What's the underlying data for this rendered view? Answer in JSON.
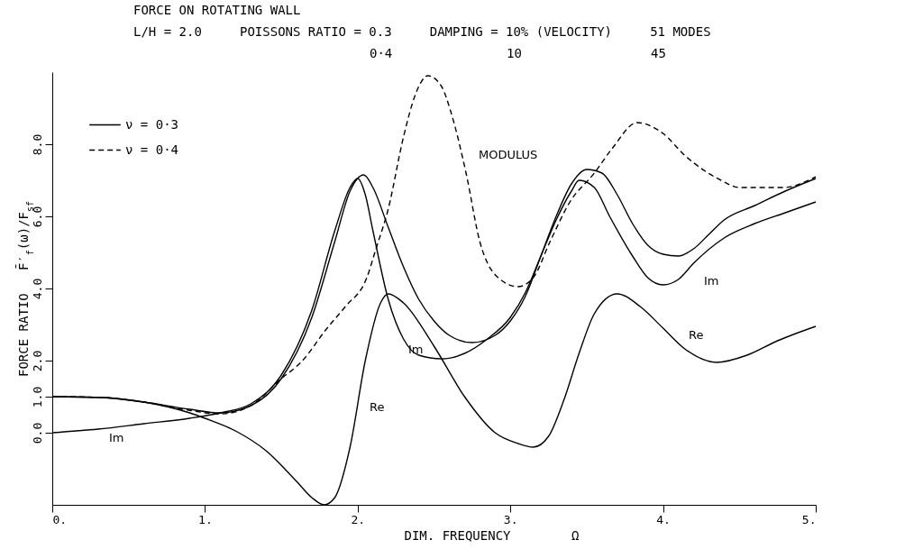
{
  "chart_data": {
    "type": "line",
    "title": "FORCE ON ROTATING WALL",
    "subtitle": "L/H = 2.0     POISSONS RATIO = 0.3     DAMPING = 10% (VELOCITY)     51 MODES",
    "xlabel": "DIM. FREQUENCY        Ω",
    "ylabel": "FORCE RATIO   F̄′$_{f}$(ω)/F$_{sf}$",
    "xlim": [
      0,
      5
    ],
    "xticks": [
      {
        "value": 0,
        "label": "0."
      },
      {
        "value": 1,
        "label": "1."
      },
      {
        "value": 2,
        "label": "2."
      },
      {
        "value": 3,
        "label": "3."
      },
      {
        "value": 4,
        "label": "4."
      },
      {
        "value": 5,
        "label": "5."
      }
    ],
    "ylim": [
      -2,
      10
    ],
    "yticks": [
      {
        "value": 0,
        "label": "0.0"
      },
      {
        "value": 1,
        "label": "1.0"
      },
      {
        "value": 2,
        "label": "2.0"
      },
      {
        "value": 4,
        "label": "4.0"
      },
      {
        "value": 6,
        "label": "6.0"
      },
      {
        "value": 8,
        "label": "8.0"
      }
    ],
    "legend": "top left",
    "grid": false,
    "series": [
      {
        "name": "ν = 0·3",
        "color": "#000000",
        "line_style": "solid",
        "x": [
          0,
          0.3,
          0.6,
          0.9,
          1.1,
          1.3,
          1.5,
          1.7,
          1.85,
          1.95,
          2.04,
          2.1,
          2.2,
          2.3,
          2.4,
          2.5,
          2.6,
          2.75,
          2.9,
          3.0,
          3.1,
          3.2,
          3.3,
          3.4,
          3.5,
          3.6,
          3.7,
          3.8,
          3.9,
          4.0,
          4.1,
          4.2,
          4.3,
          4.4,
          4.6,
          4.8,
          5.0
        ],
        "values": [
          1.0,
          0.98,
          0.85,
          0.65,
          0.55,
          0.75,
          1.5,
          3.2,
          5.3,
          6.7,
          7.15,
          6.8,
          5.7,
          4.6,
          3.7,
          3.1,
          2.7,
          2.5,
          2.7,
          3.1,
          3.8,
          4.9,
          6.0,
          6.9,
          7.3,
          7.2,
          6.6,
          5.8,
          5.2,
          4.95,
          4.9,
          5.1,
          5.5,
          5.9,
          6.3,
          6.7,
          7.05
        ]
      },
      {
        "color": "#000000",
        "line_style": "solid",
        "x": [
          0,
          0.3,
          0.6,
          0.9,
          1.1,
          1.3,
          1.5,
          1.7,
          1.85,
          1.95,
          2.0,
          2.05,
          2.1,
          2.2,
          2.3,
          2.4,
          2.55,
          2.7,
          2.85,
          3.0,
          3.1,
          3.2,
          3.3,
          3.4,
          3.45,
          3.55,
          3.65,
          3.8,
          3.9,
          4.0,
          4.1,
          4.2,
          4.4,
          4.6,
          4.8,
          5.0
        ],
        "values": [
          0,
          0.1,
          0.25,
          0.4,
          0.55,
          0.8,
          1.6,
          3.4,
          5.6,
          6.8,
          7.05,
          6.6,
          5.6,
          3.7,
          2.6,
          2.15,
          2.05,
          2.2,
          2.6,
          3.2,
          3.9,
          4.9,
          5.9,
          6.7,
          7.0,
          6.8,
          6.0,
          4.9,
          4.3,
          4.1,
          4.25,
          4.7,
          5.4,
          5.8,
          6.1,
          6.4
        ]
      },
      {
        "color": "#000000",
        "line_style": "solid",
        "x": [
          0,
          0.3,
          0.6,
          0.9,
          1.0,
          1.2,
          1.4,
          1.6,
          1.7,
          1.78,
          1.85,
          1.95,
          2.05,
          2.15,
          2.2,
          2.3,
          2.5,
          2.7,
          2.9,
          3.05,
          3.15,
          3.25,
          3.35,
          3.45,
          3.55,
          3.7,
          3.85,
          4.0,
          4.15,
          4.35,
          4.55,
          4.75,
          5.0
        ],
        "values": [
          1.0,
          0.98,
          0.85,
          0.55,
          0.4,
          0.05,
          -0.5,
          -1.35,
          -1.8,
          -2.0,
          -1.8,
          -0.4,
          2.0,
          3.6,
          3.85,
          3.6,
          2.4,
          1.0,
          0.0,
          -0.3,
          -0.4,
          -0.1,
          0.9,
          2.2,
          3.3,
          3.85,
          3.5,
          2.9,
          2.3,
          1.95,
          2.15,
          2.55,
          2.95
        ]
      },
      {
        "name": "ν = 0·4",
        "color": "#000000",
        "line_style": "dashed",
        "x": [
          0,
          0.3,
          0.6,
          0.9,
          1.1,
          1.3,
          1.5,
          1.63,
          1.8,
          1.92,
          2.06,
          2.12,
          2.2,
          2.3,
          2.38,
          2.46,
          2.55,
          2.61,
          2.71,
          2.8,
          2.92,
          3.05,
          3.15,
          3.26,
          3.39,
          3.55,
          3.67,
          3.83,
          4.0,
          4.14,
          4.38,
          4.5,
          4.79,
          5.0
        ],
        "values": [
          1.0,
          0.98,
          0.85,
          0.62,
          0.52,
          0.75,
          1.5,
          1.96,
          2.9,
          3.5,
          4.3,
          5.1,
          6.2,
          8.2,
          9.4,
          9.9,
          9.6,
          8.9,
          7.2,
          5.3,
          4.3,
          4.05,
          4.3,
          5.3,
          6.4,
          7.2,
          7.9,
          8.6,
          8.3,
          7.7,
          7.0,
          6.8,
          6.8,
          7.1
        ]
      }
    ],
    "annotations": [
      "MODULUS",
      "Im",
      "Im",
      "Im",
      "Re",
      "Re",
      "0·4",
      "10",
      "45"
    ]
  }
}
